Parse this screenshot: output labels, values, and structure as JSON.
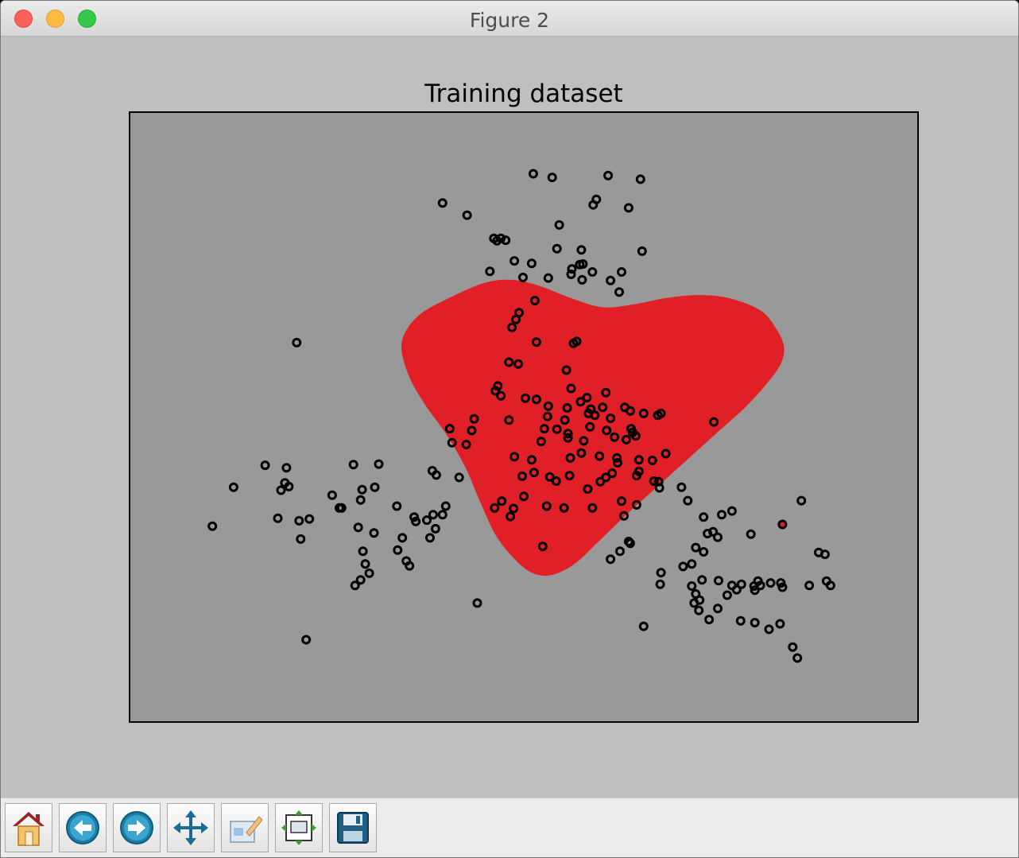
{
  "window": {
    "title": "Figure 2"
  },
  "toolbar": {
    "buttons": [
      {
        "icon": "home-icon",
        "label": "Home"
      },
      {
        "icon": "back-arrow-icon",
        "label": "Back"
      },
      {
        "icon": "forward-arrow-icon",
        "label": "Forward"
      },
      {
        "icon": "pan-icon",
        "label": "Pan"
      },
      {
        "icon": "zoom-rect-icon",
        "label": "Zoom"
      },
      {
        "icon": "subplots-config-icon",
        "label": "Subplots"
      },
      {
        "icon": "save-disk-icon",
        "label": "Save"
      }
    ]
  },
  "colors": {
    "figure_bg": "#bfbfbf",
    "axes_bg": "#999999",
    "region": "#e01f26",
    "marker_edge": "#000000",
    "marker_red_fill": "#e01f26"
  },
  "chart_data": {
    "type": "scatter",
    "title": "Training dataset",
    "xlabel": "",
    "ylabel": "",
    "ticks_visible": false,
    "grid": false,
    "xlim": [
      0,
      100
    ],
    "ylim": [
      0,
      100
    ],
    "region": {
      "description": "red decision region",
      "boundary": [
        [
          34.5,
          61
        ],
        [
          35.5,
          56.5
        ],
        [
          37.5,
          52
        ],
        [
          40,
          47.5
        ],
        [
          42.5,
          42
        ],
        [
          44.5,
          36
        ],
        [
          46.5,
          30.5
        ],
        [
          49,
          26.5
        ],
        [
          51,
          24.5
        ],
        [
          53,
          24
        ],
        [
          55,
          24.8
        ],
        [
          57,
          26.5
        ],
        [
          59,
          29
        ],
        [
          61,
          31.5
        ],
        [
          63,
          34
        ],
        [
          66,
          37.5
        ],
        [
          69,
          41
        ],
        [
          72,
          44.5
        ],
        [
          75,
          48
        ],
        [
          78,
          51.5
        ],
        [
          80.5,
          55
        ],
        [
          82.5,
          58.5
        ],
        [
          83,
          61.5
        ],
        [
          82,
          64.5
        ],
        [
          80,
          67.5
        ],
        [
          76,
          69.5
        ],
        [
          72,
          70
        ],
        [
          68,
          69.5
        ],
        [
          64,
          68.5
        ],
        [
          60,
          68
        ],
        [
          56,
          69.5
        ],
        [
          52,
          71.5
        ],
        [
          48.5,
          72.5
        ],
        [
          45,
          72
        ],
        [
          40.5,
          69.5
        ],
        [
          37,
          67
        ],
        [
          35,
          64
        ]
      ]
    },
    "series": [
      {
        "points": [
          [
            51.2,
            89.9
          ],
          [
            53.6,
            89.3
          ],
          [
            60.7,
            89.6
          ],
          [
            64.8,
            89.0
          ],
          [
            59.2,
            85.7
          ],
          [
            58.8,
            84.8
          ],
          [
            63.3,
            84.3
          ],
          [
            39.7,
            85.1
          ],
          [
            42.8,
            83.1
          ],
          [
            54.5,
            81.5
          ],
          [
            47.1,
            79.3
          ],
          [
            46.2,
            79.3
          ],
          [
            47.7,
            79.0
          ],
          [
            46.6,
            78.9
          ],
          [
            54.2,
            77.6
          ],
          [
            57.3,
            77.4
          ],
          [
            65.0,
            77.2
          ],
          [
            48.8,
            75.6
          ],
          [
            51.0,
            75.2
          ],
          [
            57.5,
            75.1
          ],
          [
            56.1,
            74.3
          ],
          [
            57.1,
            75.0
          ],
          [
            45.7,
            73.9
          ],
          [
            56.0,
            73.4
          ],
          [
            58.7,
            73.8
          ],
          [
            62.4,
            73.8
          ],
          [
            49.9,
            72.9
          ],
          [
            53.1,
            72.8
          ],
          [
            57.4,
            72.5
          ],
          [
            61.0,
            72.4
          ],
          [
            62.1,
            70.5
          ],
          [
            51.4,
            69.1
          ],
          [
            49.0,
            66.0
          ],
          [
            48.5,
            64.7
          ],
          [
            51.6,
            62.3
          ],
          [
            56.3,
            62.1
          ],
          [
            56.7,
            62.4
          ],
          [
            21.2,
            62.2
          ],
          [
            48.1,
            59.0
          ],
          [
            49.3,
            58.7
          ],
          [
            55.4,
            57.7
          ],
          [
            46.7,
            55.1
          ],
          [
            56.0,
            54.7
          ],
          [
            50.2,
            53.1
          ],
          [
            51.6,
            52.9
          ],
          [
            57.2,
            52.5
          ],
          [
            58.0,
            53.2
          ],
          [
            60.4,
            54.0
          ],
          [
            46.4,
            54.3
          ],
          [
            47.1,
            53.5
          ],
          [
            53.1,
            51.8
          ],
          [
            55.5,
            51.5
          ],
          [
            58.5,
            51.3
          ],
          [
            60.0,
            51.6
          ],
          [
            62.8,
            51.6
          ],
          [
            63.5,
            51.0
          ],
          [
            65.2,
            50.6
          ],
          [
            67.0,
            50.3
          ],
          [
            67.4,
            50.6
          ],
          [
            43.7,
            49.7
          ],
          [
            48.1,
            49.5
          ],
          [
            53.0,
            50.1
          ],
          [
            55.2,
            49.5
          ],
          [
            58.2,
            50.6
          ],
          [
            59.0,
            50.3
          ],
          [
            61.0,
            49.8
          ],
          [
            74.1,
            49.2
          ],
          [
            40.6,
            48.1
          ],
          [
            43.4,
            47.8
          ],
          [
            52.6,
            48.1
          ],
          [
            54.2,
            48.0
          ],
          [
            55.6,
            47.3
          ],
          [
            58.4,
            48.4
          ],
          [
            60.5,
            47.8
          ],
          [
            63.6,
            48.1
          ],
          [
            63.8,
            47.5
          ],
          [
            64.2,
            46.9
          ],
          [
            52.2,
            46.0
          ],
          [
            55.6,
            46.6
          ],
          [
            57.6,
            46.1
          ],
          [
            61.5,
            46.7
          ],
          [
            63.0,
            46.3
          ],
          [
            40.9,
            45.8
          ],
          [
            42.7,
            45.5
          ],
          [
            68.0,
            44.0
          ],
          [
            17.2,
            42.1
          ],
          [
            19.9,
            41.7
          ],
          [
            28.4,
            42.2
          ],
          [
            31.6,
            42.3
          ],
          [
            48.8,
            43.5
          ],
          [
            51.0,
            43.0
          ],
          [
            55.9,
            43.3
          ],
          [
            57.3,
            44.1
          ],
          [
            59.6,
            43.6
          ],
          [
            61.8,
            43.3
          ],
          [
            61.9,
            42.5
          ],
          [
            64.6,
            43.0
          ],
          [
            66.3,
            42.9
          ],
          [
            38.4,
            41.2
          ],
          [
            38.9,
            40.5
          ],
          [
            13.2,
            38.5
          ],
          [
            19.7,
            39.2
          ],
          [
            20.2,
            38.6
          ],
          [
            19.2,
            38.0
          ],
          [
            29.5,
            38.1
          ],
          [
            31.1,
            38.5
          ],
          [
            41.8,
            40.1
          ],
          [
            49.8,
            40.3
          ],
          [
            51.3,
            40.9
          ],
          [
            53.3,
            40.2
          ],
          [
            54.1,
            39.5
          ],
          [
            55.8,
            40.4
          ],
          [
            60.4,
            40.1
          ],
          [
            61.2,
            40.8
          ],
          [
            64.3,
            40.4
          ],
          [
            64.6,
            41.1
          ],
          [
            66.5,
            39.5
          ],
          [
            67.1,
            39.4
          ],
          [
            70.0,
            38.5
          ],
          [
            25.7,
            37.2
          ],
          [
            29.3,
            36.4
          ],
          [
            47.2,
            36.2
          ],
          [
            50.0,
            37.0
          ],
          [
            58.1,
            38.2
          ],
          [
            59.7,
            39.4
          ],
          [
            62.4,
            36.2
          ],
          [
            67.2,
            38.4
          ],
          [
            70.8,
            36.3
          ],
          [
            26.6,
            35.1
          ],
          [
            26.9,
            35.1
          ],
          [
            33.9,
            35.4
          ],
          [
            40.1,
            35.4
          ],
          [
            46.3,
            35.1
          ],
          [
            48.7,
            35.0
          ],
          [
            55.1,
            35.1
          ],
          [
            58.7,
            35.1
          ],
          [
            64.3,
            35.6
          ],
          [
            21.5,
            33.0
          ],
          [
            10.5,
            32.1
          ],
          [
            18.8,
            33.4
          ],
          [
            22.8,
            33.3
          ],
          [
            38.5,
            34.0
          ],
          [
            39.7,
            34.0
          ],
          [
            48.3,
            33.7
          ],
          [
            52.9,
            35.4
          ],
          [
            29.0,
            31.9
          ],
          [
            36.1,
            33.6
          ],
          [
            36.3,
            32.9
          ],
          [
            37.7,
            33.1
          ],
          [
            62.7,
            33.8
          ],
          [
            72.8,
            33.6
          ],
          [
            75.1,
            34.0
          ],
          [
            76.4,
            34.6
          ],
          [
            85.2,
            36.3
          ],
          [
            21.7,
            30.0
          ],
          [
            31.0,
            31.0
          ],
          [
            34.6,
            30.2
          ],
          [
            38.1,
            30.2
          ],
          [
            38.8,
            31.7
          ],
          [
            63.5,
            29.3
          ],
          [
            73.3,
            30.9
          ],
          [
            74.0,
            31.2
          ],
          [
            74.6,
            30.3
          ],
          [
            78.8,
            30.8
          ],
          [
            34.0,
            28.2
          ],
          [
            29.6,
            28.0
          ],
          [
            52.4,
            28.8
          ],
          [
            62.2,
            28.0
          ],
          [
            63.3,
            29.6
          ],
          [
            71.8,
            28.6
          ],
          [
            72.8,
            27.9
          ],
          [
            35.1,
            26.4
          ],
          [
            35.5,
            25.6
          ],
          [
            29.9,
            25.9
          ],
          [
            30.4,
            24.4
          ],
          [
            61.0,
            26.7
          ],
          [
            67.4,
            24.5
          ],
          [
            70.2,
            25.5
          ],
          [
            71.3,
            25.9
          ],
          [
            87.4,
            27.8
          ],
          [
            88.2,
            27.5
          ],
          [
            29.3,
            23.3
          ],
          [
            28.6,
            22.4
          ],
          [
            67.3,
            22.6
          ],
          [
            72.6,
            23.3
          ],
          [
            71.3,
            22.3
          ],
          [
            74.7,
            23.2
          ],
          [
            76.4,
            22.4
          ],
          [
            77.0,
            21.7
          ],
          [
            77.6,
            22.6
          ],
          [
            79.2,
            22.3
          ],
          [
            79.3,
            21.6
          ],
          [
            79.7,
            23.1
          ],
          [
            80.0,
            22.4
          ],
          [
            81.3,
            22.8
          ],
          [
            82.8,
            22.1
          ],
          [
            82.6,
            22.8
          ],
          [
            88.4,
            23.1
          ],
          [
            86.2,
            22.4
          ],
          [
            88.9,
            22.4
          ],
          [
            71.8,
            21.0
          ],
          [
            72.3,
            20.0
          ],
          [
            75.8,
            20.8
          ],
          [
            71.6,
            19.5
          ],
          [
            72.2,
            18.3
          ],
          [
            74.6,
            18.6
          ],
          [
            44.1,
            19.5
          ],
          [
            73.5,
            16.8
          ],
          [
            77.5,
            16.6
          ],
          [
            79.3,
            16.3
          ],
          [
            81.1,
            15.2
          ],
          [
            82.5,
            16.1
          ],
          [
            65.2,
            15.7
          ],
          [
            22.4,
            13.5
          ],
          [
            84.1,
            12.3
          ],
          [
            84.7,
            10.5
          ]
        ],
        "red_fill_points": [
          [
            49.4,
            67.1
          ],
          [
            82.8,
            32.4
          ]
        ]
      }
    ]
  }
}
